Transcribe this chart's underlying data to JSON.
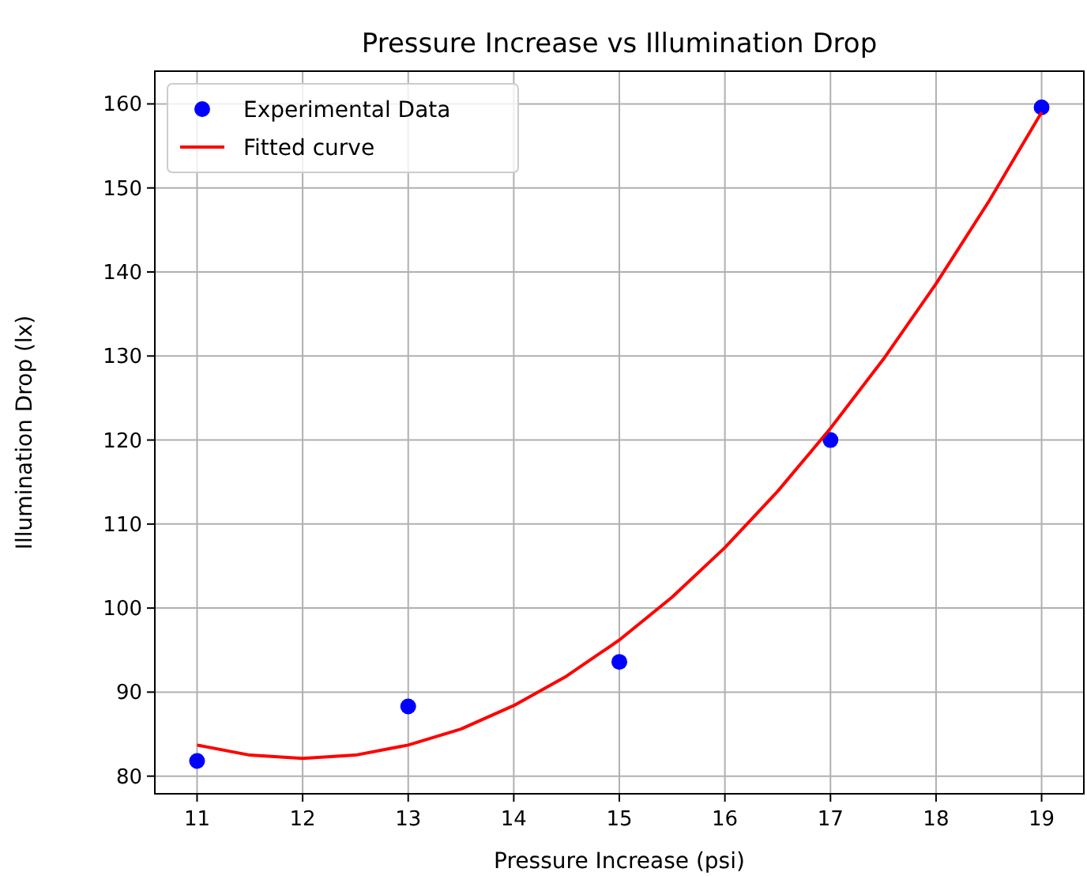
{
  "chart_data": {
    "type": "scatter",
    "title": "Pressure Increase vs Illumination Drop",
    "xlabel": "Pressure Increase (psi)",
    "ylabel": "Illumination Drop (lx)",
    "xlim": [
      10.6,
      19.4
    ],
    "ylim": [
      77.9,
      163.9
    ],
    "xticks": [
      11,
      12,
      13,
      14,
      15,
      16,
      17,
      18,
      19
    ],
    "yticks": [
      80,
      90,
      100,
      110,
      120,
      130,
      140,
      150,
      160
    ],
    "grid": true,
    "legend": "top left",
    "series": [
      {
        "name": "Experimental Data",
        "color": "#0000ff",
        "marker": "circle",
        "x": [
          11,
          13,
          15,
          17,
          19
        ],
        "values": [
          81.8,
          88.3,
          93.6,
          120,
          159.6
        ]
      },
      {
        "name": "Fitted curve",
        "type": "line",
        "color": "#ff0000",
        "marker": "none",
        "line_style": "solid",
        "x": [
          11,
          11.5,
          12,
          12.5,
          13,
          13.5,
          14,
          14.5,
          15,
          15.5,
          16,
          16.5,
          17,
          17.5,
          18,
          18.5,
          19
        ],
        "values": [
          83.7,
          82.5,
          82.1,
          82.5,
          83.7,
          85.6,
          88.4,
          91.9,
          96.2,
          101.3,
          107.2,
          113.9,
          121.4,
          129.6,
          138.6,
          148.4,
          159.0
        ]
      }
    ]
  }
}
